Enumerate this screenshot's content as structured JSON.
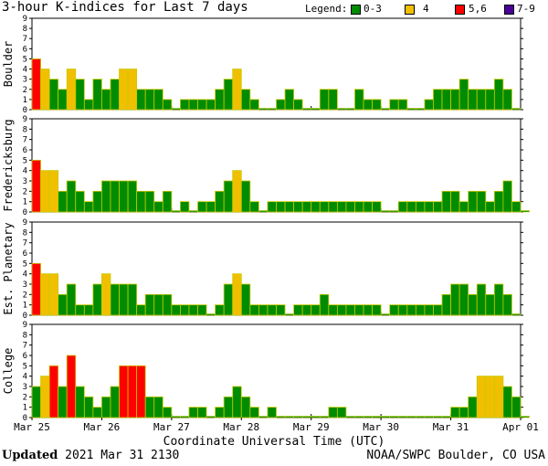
{
  "title": "3-hour K-indices for Last 7 days",
  "legend": {
    "label": "Legend:",
    "items": [
      {
        "label": "0-3",
        "color": "#008c00"
      },
      {
        "label": "4",
        "color": "#f0c000"
      },
      {
        "label": "5,6",
        "color": "#ff0000"
      },
      {
        "label": "7-9",
        "color": "#4b0096"
      }
    ]
  },
  "colors": {
    "low": "#008c00",
    "mid": "#f0c000",
    "high": "#ff0000",
    "severe": "#4b0096",
    "bar_outline": "#c8c800"
  },
  "footer": {
    "updated_label": "Updated",
    "updated_time": "2021 Mar 31 2130",
    "source": "NOAA/SWPC Boulder, CO USA"
  },
  "chart_data": {
    "type": "bar",
    "xlabel": "Coordinate Universal Time (UTC)",
    "x_ticks": [
      "Mar 25",
      "Mar 26",
      "Mar 27",
      "Mar 28",
      "Mar 29",
      "Mar 30",
      "Mar 31",
      "Apr 01"
    ],
    "interval_hours": 3,
    "ylim": [
      0,
      9
    ],
    "y_ticks": [
      0,
      1,
      2,
      3,
      4,
      5,
      6,
      7,
      8,
      9
    ],
    "panels": [
      {
        "name": "Boulder",
        "values": [
          5,
          4,
          3,
          2,
          4,
          3,
          1,
          3,
          2,
          3,
          4,
          4,
          2,
          2,
          2,
          1,
          0,
          1,
          1,
          1,
          1,
          2,
          3,
          4,
          2,
          1,
          0,
          0,
          1,
          2,
          1,
          0,
          0,
          2,
          2,
          0,
          0,
          2,
          1,
          1,
          0,
          1,
          1,
          0,
          0,
          1,
          2,
          2,
          2,
          3,
          2,
          2,
          2,
          3,
          2,
          0
        ]
      },
      {
        "name": "Fredericksburg",
        "values": [
          5,
          4,
          4,
          2,
          3,
          2,
          1,
          2,
          3,
          3,
          3,
          3,
          2,
          2,
          1,
          2,
          0,
          1,
          0,
          1,
          1,
          2,
          3,
          4,
          3,
          1,
          0,
          1,
          1,
          1,
          1,
          1,
          1,
          1,
          1,
          1,
          1,
          1,
          1,
          1,
          0,
          0,
          1,
          1,
          1,
          1,
          1,
          2,
          2,
          1,
          2,
          2,
          1,
          2,
          3,
          1,
          0
        ]
      },
      {
        "name": "Est. Planetary",
        "values": [
          5,
          4,
          4,
          2,
          3,
          1,
          1,
          3,
          4,
          3,
          3,
          3,
          1,
          2,
          2,
          2,
          1,
          1,
          1,
          1,
          0,
          1,
          3,
          4,
          3,
          1,
          1,
          1,
          1,
          0,
          1,
          1,
          1,
          2,
          1,
          1,
          1,
          1,
          1,
          1,
          0,
          1,
          1,
          1,
          1,
          1,
          1,
          2,
          3,
          3,
          2,
          3,
          2,
          3,
          2,
          0
        ]
      },
      {
        "name": "College",
        "values": [
          3,
          4,
          5,
          3,
          6,
          3,
          2,
          1,
          2,
          3,
          5,
          5,
          5,
          2,
          2,
          1,
          0,
          0,
          1,
          1,
          0,
          1,
          2,
          3,
          2,
          1,
          0,
          1,
          0,
          0,
          0,
          0,
          0,
          0,
          1,
          1,
          0,
          0,
          0,
          0,
          0,
          0,
          0,
          0,
          0,
          0,
          0,
          0,
          1,
          1,
          2,
          4,
          4,
          4,
          3,
          2,
          0
        ]
      }
    ]
  }
}
